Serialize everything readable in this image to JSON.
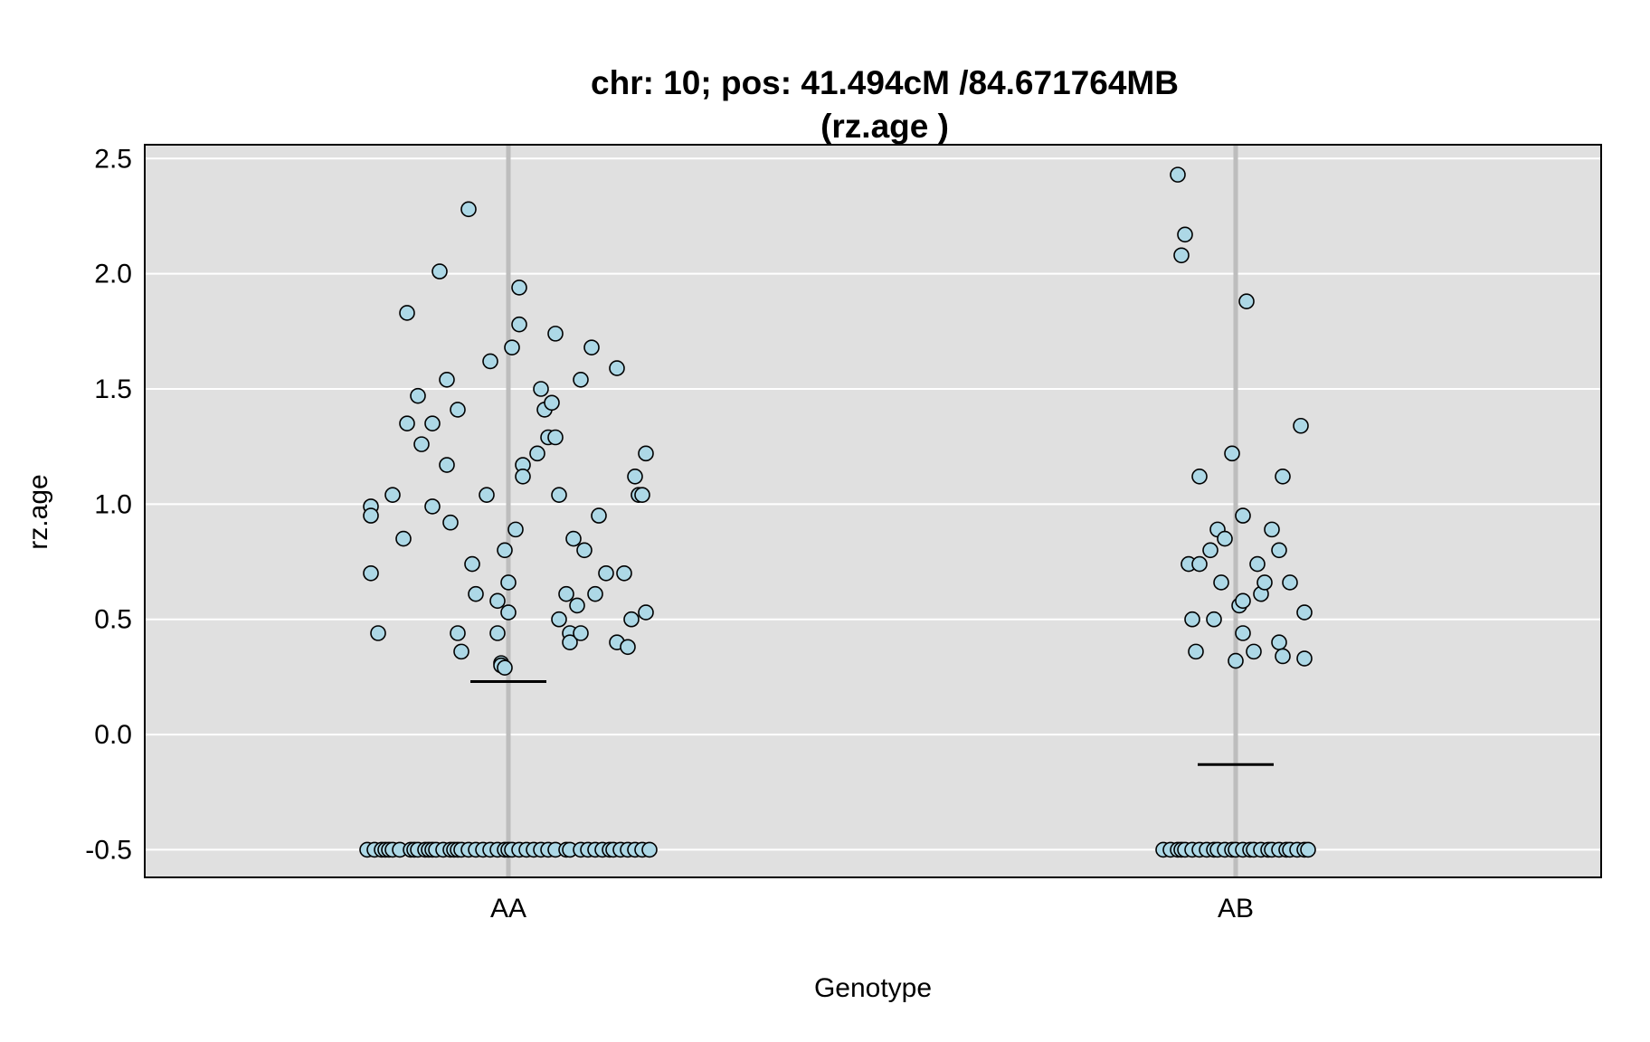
{
  "chart_data": {
    "type": "scatter",
    "title_line1": "chr: 10; pos: 41.494cM /84.671764MB",
    "title_line2": "(rz.age )",
    "xlabel": "Genotype",
    "ylabel": "rz.age",
    "categories": [
      "AA",
      "AB"
    ],
    "ylim": [
      -0.62,
      2.56
    ],
    "yticks": [
      -0.5,
      0.0,
      0.5,
      1.0,
      1.5,
      2.0,
      2.5
    ],
    "ytick_labels": [
      "-0.5",
      "0.0",
      "0.5",
      "1.0",
      "1.5",
      "2.0",
      "2.5"
    ],
    "grid": true,
    "colors": {
      "panel_background": "#e0e0e0",
      "grid": "#ffffff",
      "category_line": "#bdbdbd",
      "point_fill": "#add8e6",
      "point_edge": "#000000",
      "mean_line": "#000000"
    },
    "means": [
      {
        "category": "AA",
        "value": 0.23
      },
      {
        "category": "AB",
        "value": -0.13
      }
    ],
    "series": [
      {
        "category": "AA",
        "points": [
          [
            -0.38,
            0.99
          ],
          [
            -0.38,
            0.95
          ],
          [
            -0.38,
            0.7
          ],
          [
            -0.36,
            0.44
          ],
          [
            -0.32,
            1.04
          ],
          [
            -0.29,
            0.85
          ],
          [
            -0.28,
            1.35
          ],
          [
            -0.28,
            1.83
          ],
          [
            -0.25,
            1.47
          ],
          [
            -0.24,
            1.26
          ],
          [
            -0.21,
            1.35
          ],
          [
            -0.21,
            0.99
          ],
          [
            -0.19,
            2.01
          ],
          [
            -0.17,
            1.54
          ],
          [
            -0.17,
            1.17
          ],
          [
            -0.16,
            0.92
          ],
          [
            -0.14,
            1.41
          ],
          [
            -0.14,
            0.44
          ],
          [
            -0.13,
            0.36
          ],
          [
            -0.11,
            2.28
          ],
          [
            -0.1,
            0.74
          ],
          [
            -0.09,
            0.61
          ],
          [
            -0.06,
            1.04
          ],
          [
            -0.05,
            1.62
          ],
          [
            -0.03,
            0.44
          ],
          [
            -0.03,
            0.58
          ],
          [
            -0.02,
            0.31
          ],
          [
            -0.02,
            0.3
          ],
          [
            -0.01,
            0.29
          ],
          [
            -0.01,
            0.8
          ],
          [
            0.0,
            0.66
          ],
          [
            0.0,
            0.53
          ],
          [
            0.01,
            1.68
          ],
          [
            0.02,
            0.89
          ],
          [
            0.03,
            1.94
          ],
          [
            0.03,
            1.78
          ],
          [
            0.04,
            1.17
          ],
          [
            0.04,
            1.12
          ],
          [
            0.08,
            1.22
          ],
          [
            0.09,
            1.5
          ],
          [
            0.1,
            1.41
          ],
          [
            0.11,
            1.29
          ],
          [
            0.12,
            1.44
          ],
          [
            0.13,
            1.74
          ],
          [
            0.13,
            1.29
          ],
          [
            0.14,
            0.5
          ],
          [
            0.14,
            1.04
          ],
          [
            0.16,
            0.61
          ],
          [
            0.17,
            0.44
          ],
          [
            0.17,
            0.4
          ],
          [
            0.18,
            0.85
          ],
          [
            0.19,
            0.56
          ],
          [
            0.2,
            1.54
          ],
          [
            0.2,
            0.44
          ],
          [
            0.21,
            0.8
          ],
          [
            0.23,
            1.68
          ],
          [
            0.24,
            0.61
          ],
          [
            0.25,
            0.95
          ],
          [
            0.27,
            0.7
          ],
          [
            0.3,
            1.59
          ],
          [
            0.3,
            0.4
          ],
          [
            0.32,
            0.7
          ],
          [
            0.33,
            0.38
          ],
          [
            0.34,
            0.5
          ],
          [
            0.35,
            1.12
          ],
          [
            0.36,
            1.04
          ],
          [
            0.37,
            1.04
          ],
          [
            0.38,
            0.53
          ],
          [
            0.38,
            1.22
          ],
          [
            -0.39,
            -0.5
          ],
          [
            -0.37,
            -0.5
          ],
          [
            -0.35,
            -0.5
          ],
          [
            -0.34,
            -0.5
          ],
          [
            -0.33,
            -0.5
          ],
          [
            -0.32,
            -0.5
          ],
          [
            -0.3,
            -0.5
          ],
          [
            -0.27,
            -0.5
          ],
          [
            -0.26,
            -0.5
          ],
          [
            -0.25,
            -0.5
          ],
          [
            -0.23,
            -0.5
          ],
          [
            -0.22,
            -0.5
          ],
          [
            -0.21,
            -0.5
          ],
          [
            -0.2,
            -0.5
          ],
          [
            -0.18,
            -0.5
          ],
          [
            -0.16,
            -0.5
          ],
          [
            -0.15,
            -0.5
          ],
          [
            -0.14,
            -0.5
          ],
          [
            -0.13,
            -0.5
          ],
          [
            -0.11,
            -0.5
          ],
          [
            -0.09,
            -0.5
          ],
          [
            -0.07,
            -0.5
          ],
          [
            -0.05,
            -0.5
          ],
          [
            -0.03,
            -0.5
          ],
          [
            -0.01,
            -0.5
          ],
          [
            0.0,
            -0.5
          ],
          [
            0.01,
            -0.5
          ],
          [
            0.03,
            -0.5
          ],
          [
            0.05,
            -0.5
          ],
          [
            0.07,
            -0.5
          ],
          [
            0.09,
            -0.5
          ],
          [
            0.11,
            -0.5
          ],
          [
            0.13,
            -0.5
          ],
          [
            0.16,
            -0.5
          ],
          [
            0.17,
            -0.5
          ],
          [
            0.2,
            -0.5
          ],
          [
            0.22,
            -0.5
          ],
          [
            0.24,
            -0.5
          ],
          [
            0.26,
            -0.5
          ],
          [
            0.28,
            -0.5
          ],
          [
            0.29,
            -0.5
          ],
          [
            0.31,
            -0.5
          ],
          [
            0.33,
            -0.5
          ],
          [
            0.35,
            -0.5
          ],
          [
            0.37,
            -0.5
          ],
          [
            0.39,
            -0.5
          ]
        ]
      },
      {
        "category": "AB",
        "points": [
          [
            -0.16,
            2.43
          ],
          [
            -0.15,
            2.08
          ],
          [
            -0.14,
            2.17
          ],
          [
            -0.13,
            0.74
          ],
          [
            -0.12,
            0.5
          ],
          [
            -0.11,
            0.36
          ],
          [
            -0.1,
            1.12
          ],
          [
            -0.1,
            0.74
          ],
          [
            -0.07,
            0.8
          ],
          [
            -0.06,
            0.5
          ],
          [
            -0.05,
            0.89
          ],
          [
            -0.04,
            0.66
          ],
          [
            -0.03,
            0.85
          ],
          [
            -0.01,
            1.22
          ],
          [
            0.0,
            0.32
          ],
          [
            0.01,
            0.56
          ],
          [
            0.02,
            0.44
          ],
          [
            0.02,
            0.58
          ],
          [
            0.02,
            0.95
          ],
          [
            0.03,
            1.88
          ],
          [
            0.05,
            0.36
          ],
          [
            0.06,
            0.74
          ],
          [
            0.07,
            0.61
          ],
          [
            0.08,
            0.66
          ],
          [
            0.1,
            0.89
          ],
          [
            0.12,
            0.4
          ],
          [
            0.12,
            0.8
          ],
          [
            0.13,
            0.34
          ],
          [
            0.13,
            1.12
          ],
          [
            0.15,
            0.66
          ],
          [
            0.18,
            1.34
          ],
          [
            0.19,
            0.53
          ],
          [
            0.19,
            0.33
          ],
          [
            -0.2,
            -0.5
          ],
          [
            -0.18,
            -0.5
          ],
          [
            -0.16,
            -0.5
          ],
          [
            -0.15,
            -0.5
          ],
          [
            -0.14,
            -0.5
          ],
          [
            -0.12,
            -0.5
          ],
          [
            -0.1,
            -0.5
          ],
          [
            -0.08,
            -0.5
          ],
          [
            -0.06,
            -0.5
          ],
          [
            -0.05,
            -0.5
          ],
          [
            -0.03,
            -0.5
          ],
          [
            -0.01,
            -0.5
          ],
          [
            0.0,
            -0.5
          ],
          [
            0.02,
            -0.5
          ],
          [
            0.04,
            -0.5
          ],
          [
            0.05,
            -0.5
          ],
          [
            0.07,
            -0.5
          ],
          [
            0.09,
            -0.5
          ],
          [
            0.1,
            -0.5
          ],
          [
            0.12,
            -0.5
          ],
          [
            0.14,
            -0.5
          ],
          [
            0.15,
            -0.5
          ],
          [
            0.17,
            -0.5
          ],
          [
            0.19,
            -0.5
          ],
          [
            0.2,
            -0.5
          ]
        ]
      }
    ]
  }
}
